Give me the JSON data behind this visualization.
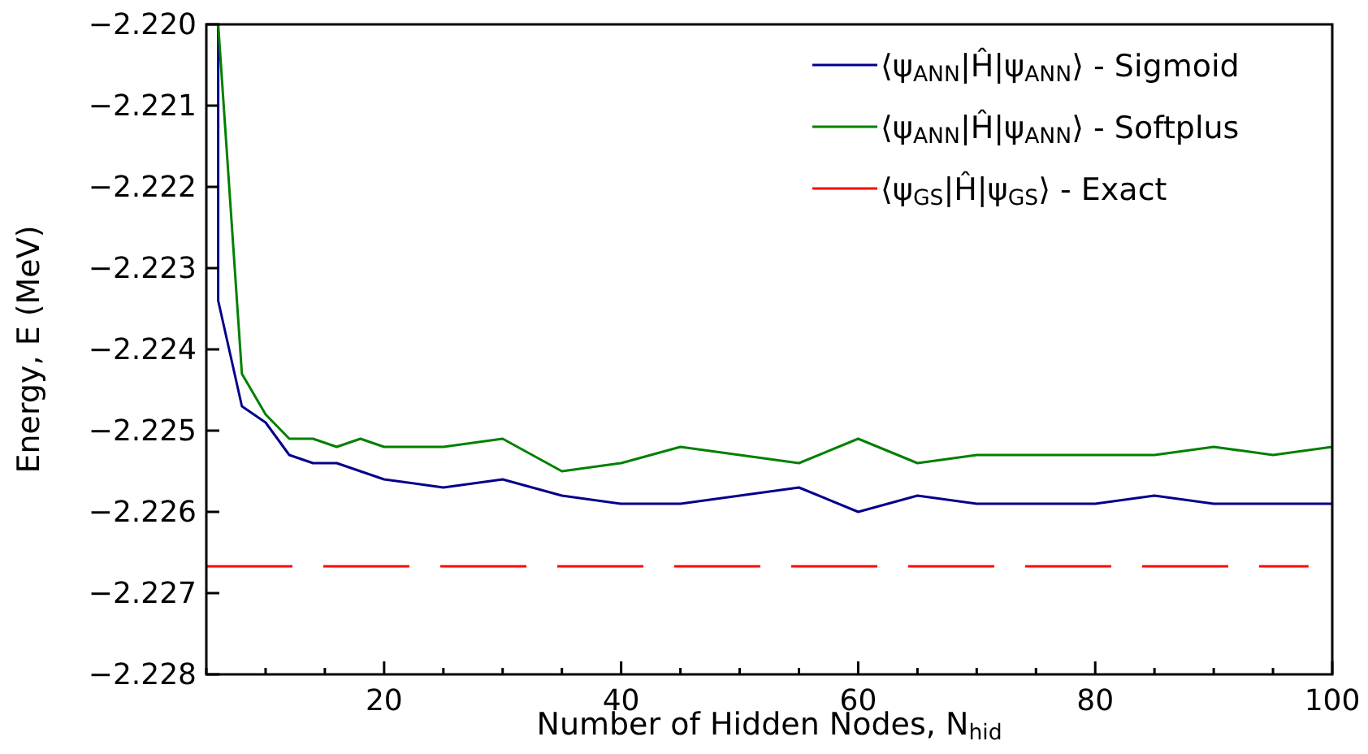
{
  "chart_data": {
    "type": "line",
    "xlabel": "Number of Hidden Nodes, N$_{hid}$",
    "ylabel": "Energy, E (MeV)",
    "xlim": [
      5,
      100
    ],
    "ylim": [
      -2.228,
      -2.22
    ],
    "xticks": [
      {
        "value": 5,
        "label": null
      },
      {
        "value": 10,
        "label": null
      },
      {
        "value": 15,
        "label": null
      },
      20,
      {
        "value": 25,
        "label": null
      },
      {
        "value": 30,
        "label": null
      },
      {
        "value": 35,
        "label": null
      },
      40,
      {
        "value": 45,
        "label": null
      },
      {
        "value": 50,
        "label": null
      },
      {
        "value": 55,
        "label": null
      },
      60,
      {
        "value": 65,
        "label": null
      },
      {
        "value": 70,
        "label": null
      },
      {
        "value": 75,
        "label": null
      },
      80,
      {
        "value": 85,
        "label": null
      },
      {
        "value": 90,
        "label": null
      },
      {
        "value": 95,
        "label": null
      },
      100
    ],
    "yticks": [
      {
        "value": -2.22,
        "label": "−2.220"
      },
      {
        "value": -2.221,
        "label": "−2.221"
      },
      {
        "value": -2.222,
        "label": "−2.222"
      },
      {
        "value": -2.223,
        "label": "−2.223"
      },
      {
        "value": -2.224,
        "label": "−2.224"
      },
      {
        "value": -2.225,
        "label": "−2.225"
      },
      {
        "value": -2.226,
        "label": "−2.226"
      },
      {
        "value": -2.227,
        "label": "−2.227"
      },
      {
        "value": -2.228,
        "label": "−2.228"
      }
    ],
    "grid": false,
    "legend": "top right",
    "series": [
      {
        "name": "⟨ψ$_{ANN}$|Ĥ|ψ$_{ANN}$⟩ - Sigmoid",
        "color": "#00008b",
        "x": [
          6,
          6,
          8,
          10,
          12,
          14,
          16,
          20,
          25,
          30,
          35,
          40,
          45,
          50,
          55,
          60,
          65,
          70,
          75,
          80,
          85,
          90,
          95,
          100
        ],
        "values": [
          -2.22,
          -2.2234,
          -2.2247,
          -2.2249,
          -2.2253,
          -2.2254,
          -2.2254,
          -2.2256,
          -2.2257,
          -2.2256,
          -2.2258,
          -2.2259,
          -2.2259,
          -2.2258,
          -2.2257,
          -2.226,
          -2.2258,
          -2.2259,
          -2.2259,
          -2.2259,
          -2.2258,
          -2.2259,
          -2.2259,
          -2.2259
        ]
      },
      {
        "name": "⟨ψ$_{ANN}$|Ĥ|ψ$_{ANN}$⟩ - Softplus",
        "color": "#008000",
        "x": [
          6,
          8,
          10,
          12,
          14,
          16,
          18,
          20,
          25,
          30,
          35,
          40,
          45,
          50,
          55,
          60,
          65,
          70,
          75,
          80,
          85,
          90,
          95,
          100
        ],
        "values": [
          -2.22,
          -2.2243,
          -2.2248,
          -2.2251,
          -2.2251,
          -2.2252,
          -2.2251,
          -2.2252,
          -2.2252,
          -2.2251,
          -2.2255,
          -2.2254,
          -2.2252,
          -2.2253,
          -2.2254,
          -2.2251,
          -2.2254,
          -2.2253,
          -2.2253,
          -2.2253,
          -2.2253,
          -2.2252,
          -2.2253,
          -2.2252
        ]
      },
      {
        "name": "⟨ψ$_{GS}$|Ĥ|ψ$_{GS}$⟩ - Exact",
        "color": "#ff0000",
        "line_style": "dashed",
        "x": [
          5,
          98
        ],
        "values": [
          -2.22667,
          -2.22667
        ]
      }
    ]
  }
}
